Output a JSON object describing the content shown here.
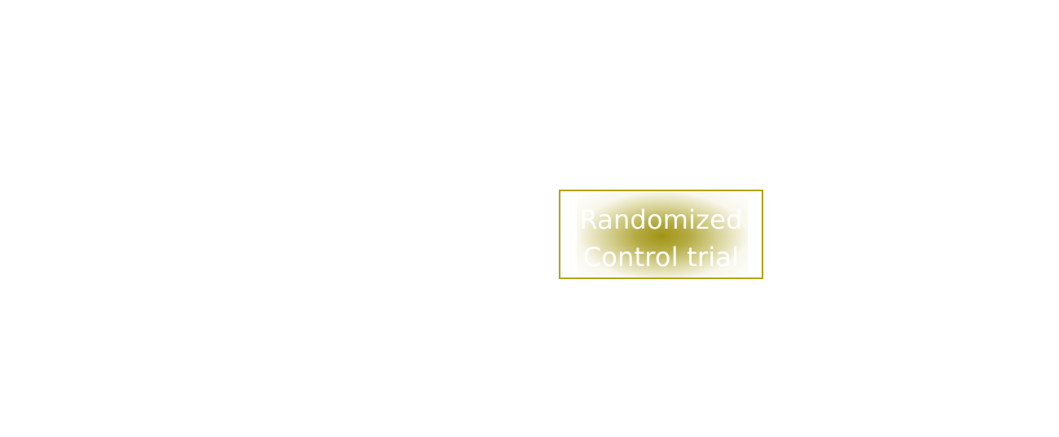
{
  "diagram": {
    "node": {
      "label_line1": "Randomized",
      "label_line2": "Control trial",
      "border_color": "#b0a21a",
      "fill_color": "#a0941a",
      "text_color": "#ffffff"
    }
  }
}
